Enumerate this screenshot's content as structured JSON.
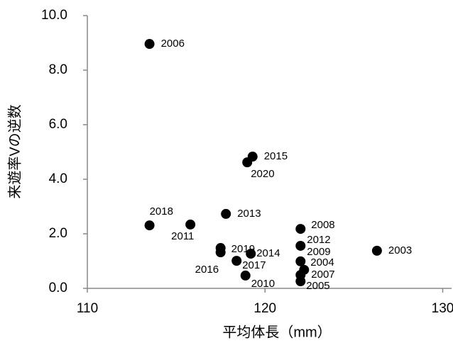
{
  "chart_data": {
    "type": "scatter",
    "x_label": "平均体長（mm）",
    "y_label": "来遊率Vの逆数",
    "labels": [
      "2006",
      "2015",
      "2020",
      "2018",
      "2011",
      "2013",
      "2008",
      "2012",
      "2003",
      "2019",
      "2016",
      "2014",
      "2009",
      "2017",
      "2004",
      "2007",
      "2010",
      "2005"
    ],
    "x": [
      113.5,
      119.3,
      119.0,
      113.5,
      115.8,
      117.8,
      122.0,
      122.0,
      126.3,
      117.5,
      117.5,
      119.2,
      122.0,
      118.4,
      122.2,
      122.0,
      118.9,
      122.0
    ],
    "y": [
      8.96,
      4.83,
      4.62,
      2.31,
      2.34,
      2.73,
      2.18,
      1.56,
      1.38,
      1.48,
      1.32,
      1.27,
      0.99,
      1.01,
      0.68,
      0.49,
      0.47,
      0.26
    ],
    "color": "#000000",
    "xlim": [
      110,
      130.5
    ],
    "xticks": [
      110,
      120,
      130
    ],
    "ylim": [
      0,
      10
    ],
    "yticks": [
      {
        "value": 0,
        "label": "0.0"
      },
      {
        "value": 2,
        "label": "2.0"
      },
      {
        "value": 4,
        "label": "4.0"
      },
      {
        "value": 6,
        "label": "6.0"
      },
      {
        "value": 8,
        "label": "8.0"
      },
      {
        "value": 10,
        "label": "10.0"
      }
    ]
  }
}
